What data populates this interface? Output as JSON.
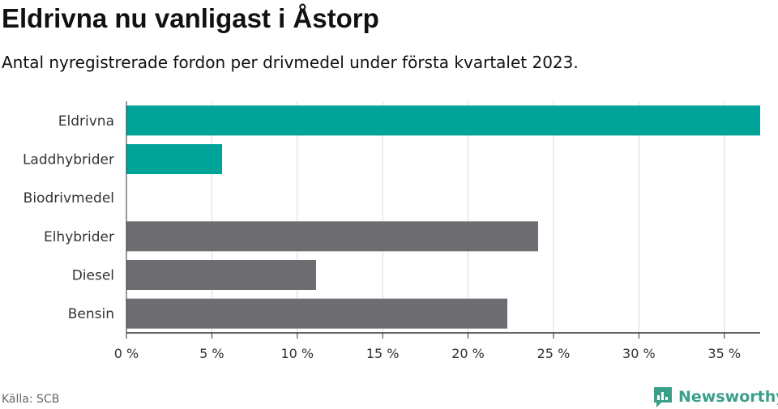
{
  "title": "Eldrivna nu vanligast i Åstorp",
  "subtitle": "Antal nyregistrerade fordon per drivmedel under första kvartalet 2023.",
  "source": "Källa: SCB",
  "brand": "Newsworthy",
  "colors": {
    "highlight": "#00a398",
    "other": "#6e6d72",
    "grid": "#d9d9d9",
    "axis": "#333333",
    "brand": "#3aa08c"
  },
  "chart_data": {
    "type": "bar",
    "orientation": "horizontal",
    "categories": [
      "Eldrivna",
      "Laddhybrider",
      "Biodrivmedel",
      "Elhybrider",
      "Diesel",
      "Bensin"
    ],
    "values": [
      37.1,
      5.6,
      0,
      24.1,
      11.1,
      22.3
    ],
    "highlight": [
      true,
      true,
      true,
      false,
      false,
      false
    ],
    "unit": "%",
    "xlim": [
      0,
      37.1
    ],
    "xticks": [
      0,
      5,
      10,
      15,
      20,
      25,
      30,
      35
    ],
    "xtick_labels": [
      "0 %",
      "5 %",
      "10 %",
      "15 %",
      "20 %",
      "25 %",
      "30 %",
      "35 %"
    ],
    "grid": true,
    "legend": "none"
  }
}
